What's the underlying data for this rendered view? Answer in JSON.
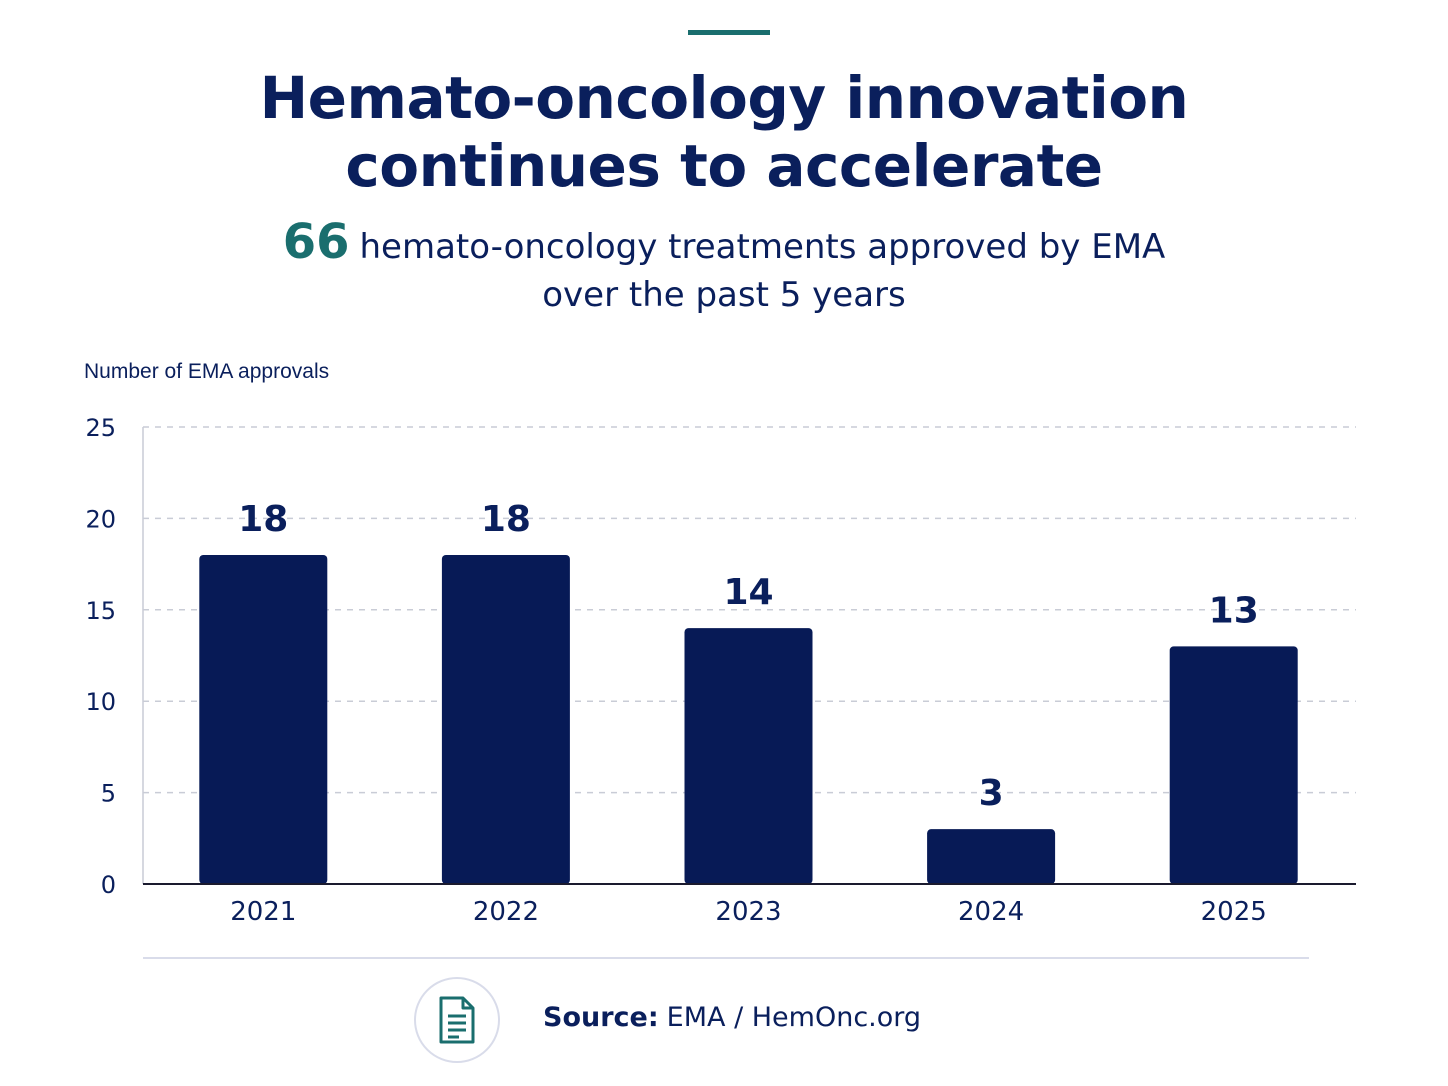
{
  "header": {
    "title_line1": "Hemato-oncology innovation",
    "title_line2": "continues to accelerate",
    "highlight_number": "66",
    "subtitle_line1": "hemato-oncology treatments approved by EMA",
    "subtitle_line2": "over the past 5 years"
  },
  "colors": {
    "accent": "#1a6e6e",
    "bar": "#071a56",
    "text": "#0a1f5c",
    "grid": "#c9ccd6"
  },
  "chart_data": {
    "type": "bar",
    "title": "",
    "xlabel": "",
    "ylabel": "Number of EMA approvals",
    "categories": [
      "2021",
      "2022",
      "2023",
      "2024",
      "2025"
    ],
    "values": [
      18,
      18,
      14,
      3,
      13
    ],
    "data_labels": [
      "18",
      "18",
      "14",
      "3",
      "13"
    ],
    "ylim": [
      0,
      25
    ],
    "yticks": [
      0,
      5,
      10,
      15,
      20,
      25
    ],
    "grid": true,
    "legend": "none"
  },
  "footer": {
    "source_label": "Source:",
    "source_text": "EMA / HemOnc.org",
    "source_icon": "document-icon"
  }
}
